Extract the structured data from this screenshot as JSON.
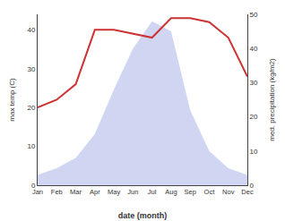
{
  "chart_data": {
    "type": "line",
    "xlabel": "date (month)",
    "ylabel": "max temp (C)",
    "y2label": "med. precipitation (kg/m2)",
    "categories": [
      "Jan",
      "Feb",
      "Mar",
      "Apr",
      "May",
      "Jun",
      "Jul",
      "Aug",
      "Sep",
      "Oct",
      "Nov",
      "Dec"
    ],
    "series": [
      {
        "type": "area",
        "axis": "y2",
        "color": "#aab4e8",
        "values": [
          3,
          5,
          8,
          15,
          28,
          40,
          48,
          45,
          22,
          10,
          5,
          3
        ]
      },
      {
        "type": "line",
        "color": "#cc3333",
        "values": [
          20,
          22,
          26,
          40,
          40,
          39,
          38,
          43,
          43,
          42,
          38,
          28
        ]
      }
    ],
    "ylim": [
      0,
      44
    ],
    "yticks": [
      0,
      10,
      20,
      30,
      40
    ],
    "y2lim": [
      0,
      50
    ],
    "y2ticks": [
      0,
      10,
      20,
      30,
      40,
      50
    ],
    "grid": false
  }
}
